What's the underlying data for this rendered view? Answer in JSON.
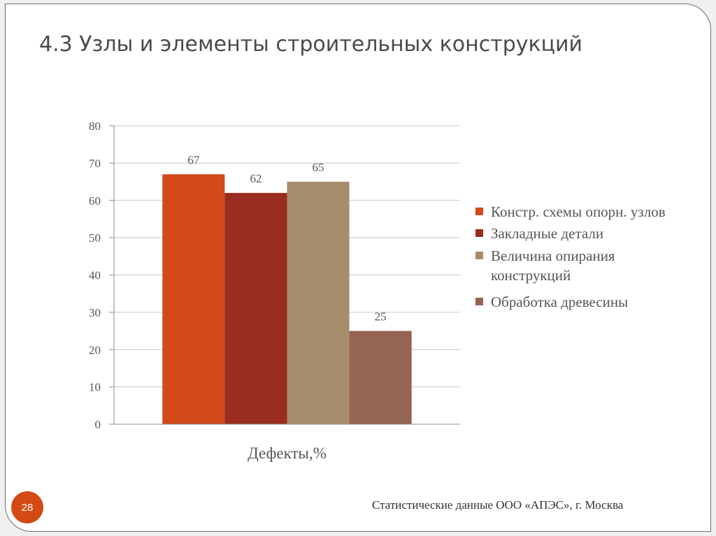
{
  "slide": {
    "title": "4.3 Узлы и элементы строительных конструкций",
    "number": "28",
    "source_note": "Статистические данные ООО «АПЭС», г. Москва"
  },
  "chart_data": {
    "type": "bar",
    "categories": [
      "Дефекты,%"
    ],
    "series": [
      {
        "name": "Констр. схемы опорн. узлов",
        "values": [
          67
        ],
        "color": "#d2491a"
      },
      {
        "name": "Закладные детали",
        "values": [
          62
        ],
        "color": "#992d1f"
      },
      {
        "name": "Величина опирания конструкций",
        "values": [
          65
        ],
        "color": "#a68c6b"
      },
      {
        "name": "Обработка древесины",
        "values": [
          25
        ],
        "color": "#966452"
      }
    ],
    "ylim": [
      0,
      80
    ],
    "yticks": [
      0,
      10,
      20,
      30,
      40,
      50,
      60,
      70,
      80
    ],
    "grid": true,
    "legend_position": "right",
    "data_labels": true
  }
}
